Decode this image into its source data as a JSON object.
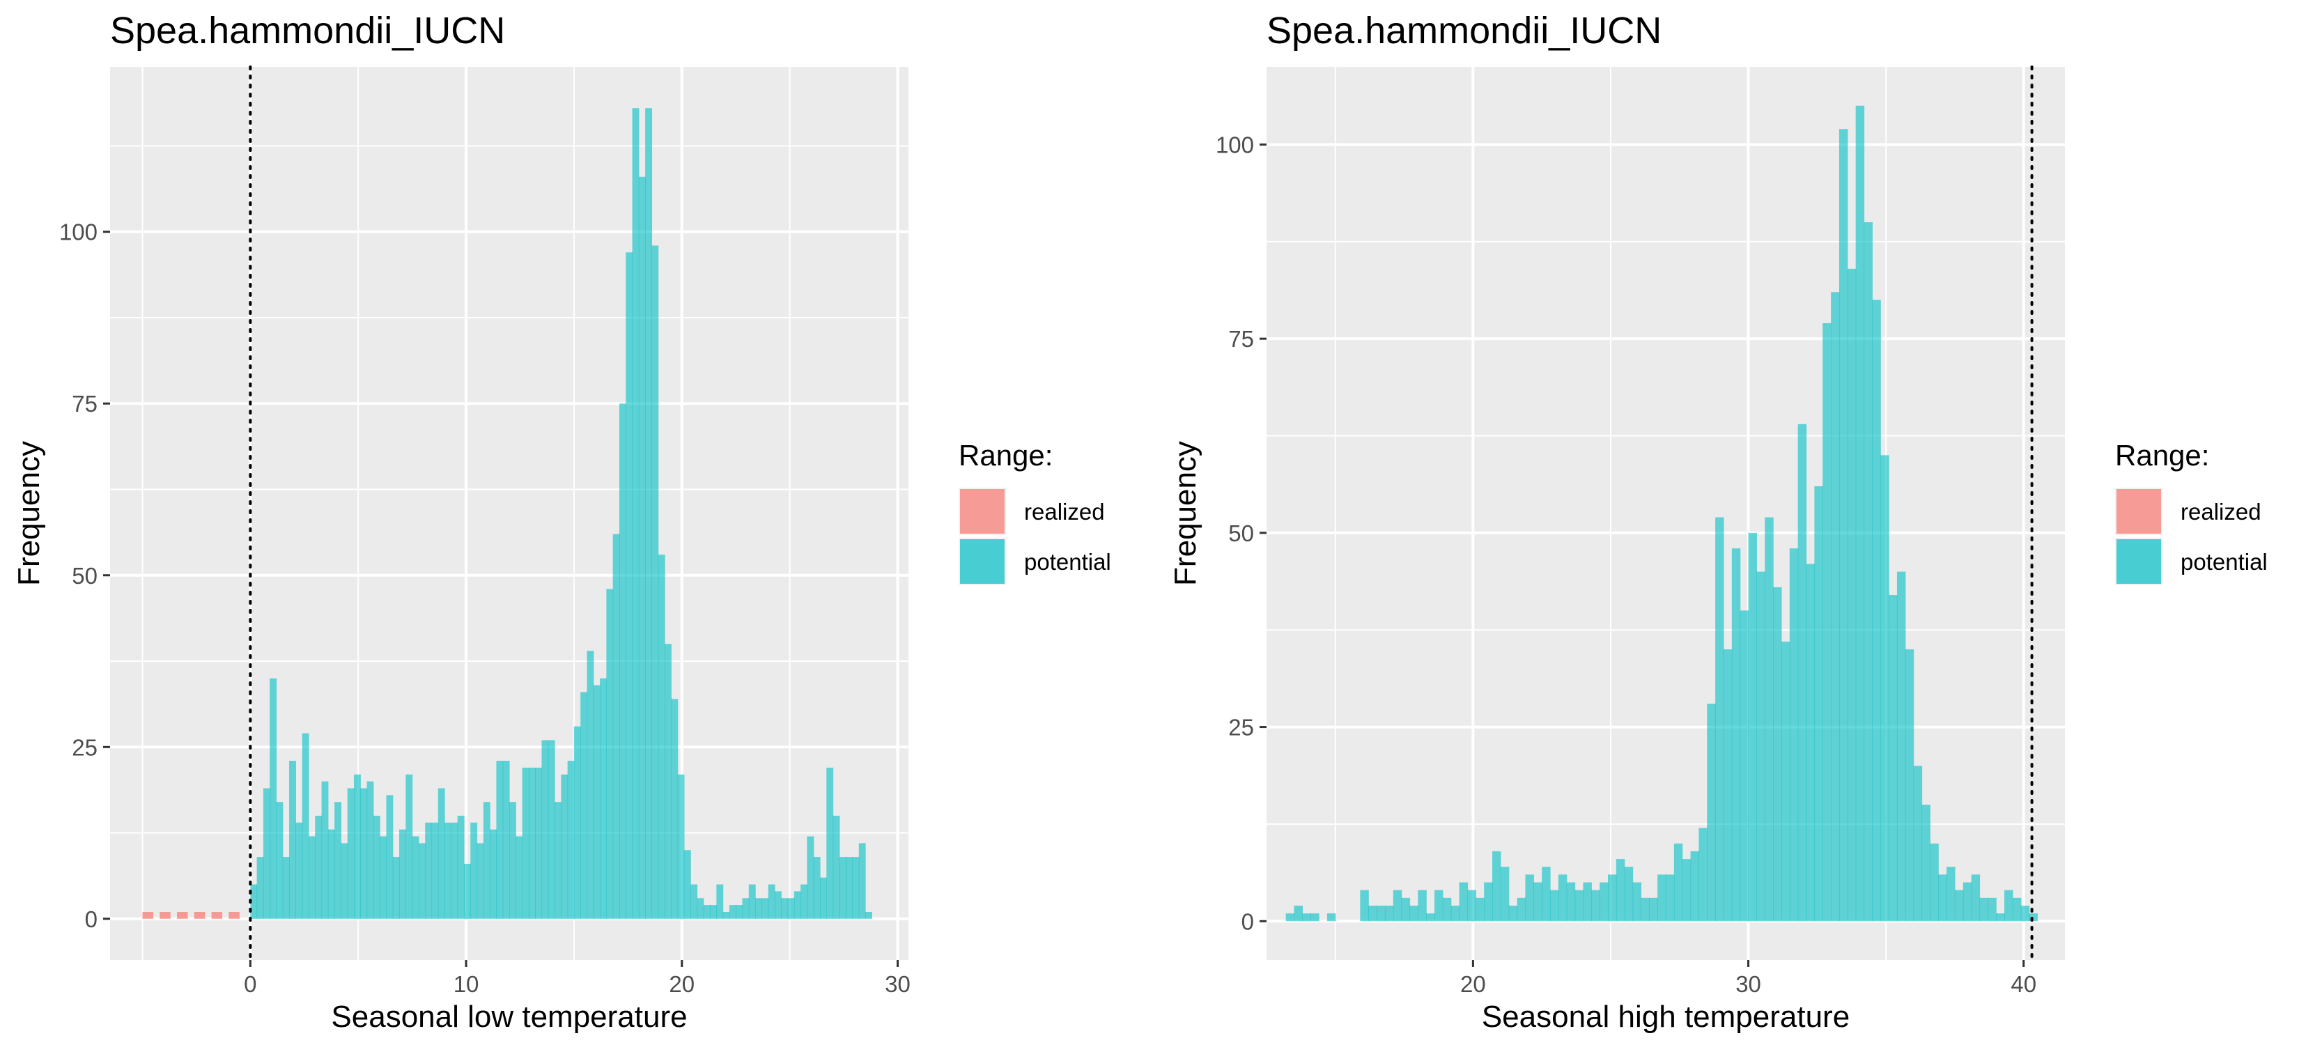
{
  "chart_data": [
    {
      "type": "bar",
      "title": "Spea.hammondii_IUCN",
      "xlabel": "Seasonal low temperature",
      "ylabel": "Frequency",
      "xlim": [
        -6.5,
        30.5
      ],
      "ylim": [
        -6,
        124
      ],
      "x_ticks": [
        0,
        10,
        20,
        30
      ],
      "y_ticks": [
        0,
        25,
        50,
        75,
        100
      ],
      "reference_line_x": 0,
      "grid": true,
      "legend": {
        "title": "Range:",
        "position": "right",
        "entries": [
          "realized",
          "potential"
        ]
      },
      "series": [
        {
          "name": "realized",
          "color": "#F8766D",
          "bins": [
            [
              -5.0,
              1
            ],
            [
              -4.2,
              1
            ],
            [
              -3.4,
              1
            ],
            [
              -2.6,
              1
            ],
            [
              -1.8,
              1
            ],
            [
              -1.0,
              1
            ]
          ]
        },
        {
          "name": "potential",
          "color": "#00BFC4",
          "bins": [
            [
              0.0,
              5
            ],
            [
              0.3,
              9
            ],
            [
              0.6,
              19
            ],
            [
              0.9,
              35
            ],
            [
              1.2,
              17
            ],
            [
              1.5,
              9
            ],
            [
              1.8,
              23
            ],
            [
              2.1,
              14
            ],
            [
              2.4,
              27
            ],
            [
              2.7,
              12
            ],
            [
              3.0,
              15
            ],
            [
              3.3,
              20
            ],
            [
              3.6,
              13
            ],
            [
              3.9,
              17
            ],
            [
              4.2,
              11
            ],
            [
              4.5,
              19
            ],
            [
              4.8,
              21
            ],
            [
              5.1,
              19
            ],
            [
              5.4,
              20
            ],
            [
              5.7,
              15
            ],
            [
              6.0,
              12
            ],
            [
              6.3,
              18
            ],
            [
              6.6,
              9
            ],
            [
              6.9,
              13
            ],
            [
              7.2,
              21
            ],
            [
              7.5,
              12
            ],
            [
              7.8,
              11
            ],
            [
              8.1,
              14
            ],
            [
              8.4,
              14
            ],
            [
              8.7,
              19
            ],
            [
              9.0,
              14
            ],
            [
              9.3,
              14
            ],
            [
              9.6,
              15
            ],
            [
              9.9,
              8
            ],
            [
              10.2,
              14
            ],
            [
              10.5,
              11
            ],
            [
              10.8,
              17
            ],
            [
              11.1,
              13
            ],
            [
              11.4,
              23
            ],
            [
              11.7,
              23
            ],
            [
              12.0,
              17
            ],
            [
              12.3,
              12
            ],
            [
              12.6,
              22
            ],
            [
              12.9,
              22
            ],
            [
              13.2,
              22
            ],
            [
              13.5,
              26
            ],
            [
              13.8,
              26
            ],
            [
              14.1,
              17
            ],
            [
              14.4,
              21
            ],
            [
              14.7,
              23
            ],
            [
              15.0,
              28
            ],
            [
              15.3,
              33
            ],
            [
              15.6,
              39
            ],
            [
              15.9,
              34
            ],
            [
              16.2,
              35
            ],
            [
              16.5,
              48
            ],
            [
              16.8,
              56
            ],
            [
              17.1,
              75
            ],
            [
              17.4,
              97
            ],
            [
              17.7,
              118
            ],
            [
              18.0,
              108
            ],
            [
              18.3,
              118
            ],
            [
              18.6,
              98
            ],
            [
              18.9,
              53
            ],
            [
              19.2,
              40
            ],
            [
              19.5,
              32
            ],
            [
              19.8,
              21
            ],
            [
              20.1,
              10
            ],
            [
              20.4,
              5
            ],
            [
              20.7,
              3
            ],
            [
              21.0,
              2
            ],
            [
              21.3,
              2
            ],
            [
              21.6,
              5
            ],
            [
              21.9,
              1
            ],
            [
              22.2,
              2
            ],
            [
              22.5,
              2
            ],
            [
              22.8,
              3
            ],
            [
              23.1,
              5
            ],
            [
              23.4,
              3
            ],
            [
              23.7,
              3
            ],
            [
              24.0,
              5
            ],
            [
              24.3,
              4
            ],
            [
              24.6,
              3
            ],
            [
              24.9,
              3
            ],
            [
              25.2,
              4
            ],
            [
              25.5,
              5
            ],
            [
              25.8,
              12
            ],
            [
              26.1,
              9
            ],
            [
              26.4,
              6
            ],
            [
              26.7,
              22
            ],
            [
              27.0,
              15
            ],
            [
              27.3,
              9
            ],
            [
              27.6,
              9
            ],
            [
              27.9,
              9
            ],
            [
              28.2,
              11
            ],
            [
              28.5,
              1
            ]
          ]
        }
      ]
    },
    {
      "type": "bar",
      "title": "Spea.hammondii_IUCN",
      "xlabel": "Seasonal high temperature",
      "ylabel": "Frequency",
      "xlim": [
        12.5,
        41.5
      ],
      "ylim": [
        -5,
        110
      ],
      "x_ticks": [
        20,
        30,
        40
      ],
      "y_ticks": [
        0,
        25,
        50,
        75,
        100
      ],
      "reference_line_x": 40.3,
      "grid": true,
      "legend": {
        "title": "Range:",
        "position": "right",
        "entries": [
          "realized",
          "potential"
        ]
      },
      "series": [
        {
          "name": "realized",
          "color": "#F8766D",
          "bins": []
        },
        {
          "name": "potential",
          "color": "#00BFC4",
          "bins": [
            [
              13.2,
              1
            ],
            [
              13.5,
              2
            ],
            [
              13.8,
              1
            ],
            [
              14.1,
              1
            ],
            [
              14.4,
              0
            ],
            [
              14.7,
              1
            ],
            [
              15.0,
              0
            ],
            [
              15.3,
              0
            ],
            [
              15.6,
              0
            ],
            [
              15.9,
              4
            ],
            [
              16.2,
              2
            ],
            [
              16.5,
              2
            ],
            [
              16.8,
              2
            ],
            [
              17.1,
              4
            ],
            [
              17.4,
              3
            ],
            [
              17.7,
              2
            ],
            [
              18.0,
              4
            ],
            [
              18.3,
              1
            ],
            [
              18.6,
              4
            ],
            [
              18.9,
              3
            ],
            [
              19.2,
              2
            ],
            [
              19.5,
              5
            ],
            [
              19.8,
              4
            ],
            [
              20.1,
              3
            ],
            [
              20.4,
              5
            ],
            [
              20.7,
              9
            ],
            [
              21.0,
              7
            ],
            [
              21.3,
              2
            ],
            [
              21.6,
              3
            ],
            [
              21.9,
              6
            ],
            [
              22.2,
              5
            ],
            [
              22.5,
              7
            ],
            [
              22.8,
              4
            ],
            [
              23.1,
              6
            ],
            [
              23.4,
              5
            ],
            [
              23.7,
              4
            ],
            [
              24.0,
              5
            ],
            [
              24.3,
              4
            ],
            [
              24.6,
              5
            ],
            [
              24.9,
              6
            ],
            [
              25.2,
              8
            ],
            [
              25.5,
              7
            ],
            [
              25.8,
              5
            ],
            [
              26.1,
              3
            ],
            [
              26.4,
              3
            ],
            [
              26.7,
              6
            ],
            [
              27.0,
              6
            ],
            [
              27.3,
              10
            ],
            [
              27.6,
              8
            ],
            [
              27.9,
              9
            ],
            [
              28.2,
              12
            ],
            [
              28.5,
              28
            ],
            [
              28.8,
              52
            ],
            [
              29.1,
              35
            ],
            [
              29.4,
              48
            ],
            [
              29.7,
              40
            ],
            [
              30.0,
              50
            ],
            [
              30.3,
              45
            ],
            [
              30.6,
              52
            ],
            [
              30.9,
              43
            ],
            [
              31.2,
              36
            ],
            [
              31.5,
              48
            ],
            [
              31.8,
              64
            ],
            [
              32.1,
              46
            ],
            [
              32.4,
              56
            ],
            [
              32.7,
              77
            ],
            [
              33.0,
              81
            ],
            [
              33.3,
              102
            ],
            [
              33.6,
              84
            ],
            [
              33.9,
              105
            ],
            [
              34.2,
              90
            ],
            [
              34.5,
              80
            ],
            [
              34.8,
              60
            ],
            [
              35.1,
              42
            ],
            [
              35.4,
              45
            ],
            [
              35.7,
              35
            ],
            [
              36.0,
              20
            ],
            [
              36.3,
              15
            ],
            [
              36.6,
              10
            ],
            [
              36.9,
              6
            ],
            [
              37.2,
              7
            ],
            [
              37.5,
              4
            ],
            [
              37.8,
              5
            ],
            [
              38.1,
              6
            ],
            [
              38.4,
              3
            ],
            [
              38.7,
              3
            ],
            [
              39.0,
              1
            ],
            [
              39.3,
              4
            ],
            [
              39.6,
              3
            ],
            [
              39.9,
              2
            ],
            [
              40.2,
              1
            ]
          ]
        }
      ]
    }
  ]
}
